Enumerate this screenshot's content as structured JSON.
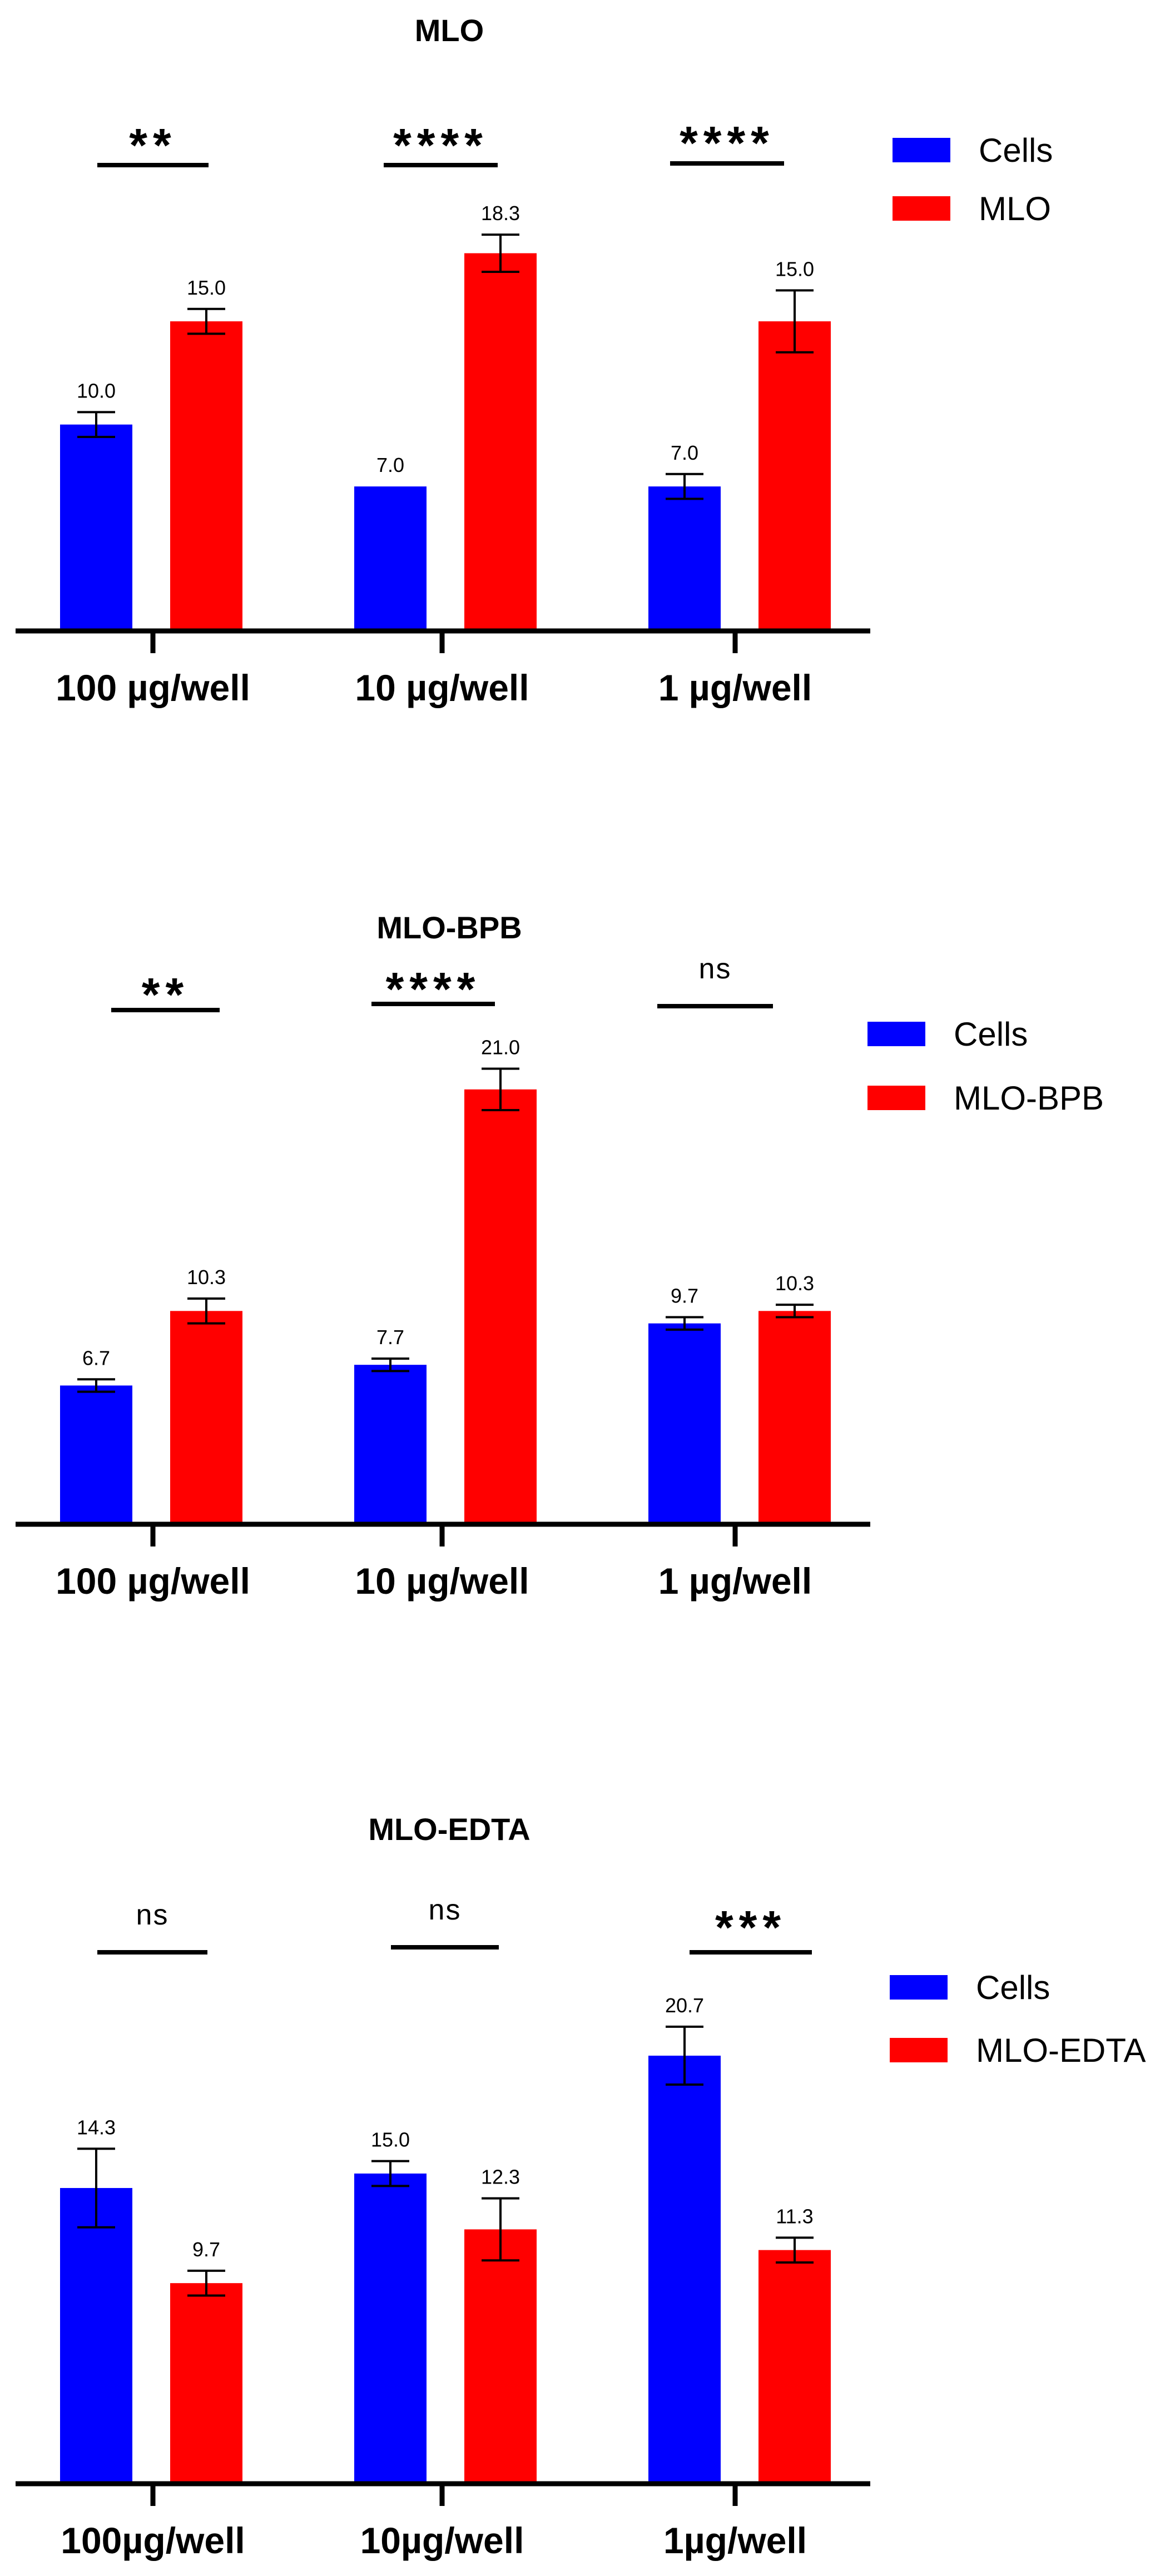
{
  "colors": {
    "cells": "#0000ff",
    "treatment": "#ff0000",
    "ink": "#000000"
  },
  "chart_data": [
    {
      "type": "bar",
      "title": "MLO",
      "categories": [
        "100 µg/well",
        "10 µg/well",
        "1 µg/well"
      ],
      "series": [
        {
          "name": "Cells",
          "values": [
            10.0,
            7.0,
            7.0
          ],
          "errors": [
            0.6,
            0.0,
            0.6
          ],
          "labels": [
            "10.0",
            "7.0",
            "7.0"
          ]
        },
        {
          "name": "MLO",
          "values": [
            15.0,
            18.3,
            15.0
          ],
          "errors": [
            0.6,
            0.9,
            1.5
          ],
          "labels": [
            "15.0",
            "18.3",
            "15.0"
          ]
        }
      ],
      "significance": [
        "**",
        "****",
        "****"
      ],
      "xlabel": "",
      "ylabel": "",
      "ylim": [
        0,
        22
      ],
      "legend": "top-right"
    },
    {
      "type": "bar",
      "title": "MLO-BPB",
      "categories": [
        "100 µg/well",
        "10 µg/well",
        "1 µg/well"
      ],
      "series": [
        {
          "name": "Cells",
          "values": [
            6.7,
            7.7,
            9.7
          ],
          "errors": [
            0.3,
            0.3,
            0.3
          ],
          "labels": [
            "6.7",
            "7.7",
            "9.7"
          ]
        },
        {
          "name": "MLO-BPB",
          "values": [
            10.3,
            21.0,
            10.3
          ],
          "errors": [
            0.6,
            1.0,
            0.3
          ],
          "labels": [
            "10.3",
            "21.0",
            "10.3"
          ]
        }
      ],
      "significance": [
        "**",
        "****",
        "ns"
      ],
      "xlabel": "",
      "ylabel": "",
      "ylim": [
        0,
        25.5
      ],
      "legend": "top-right"
    },
    {
      "type": "bar",
      "title": "MLO-EDTA",
      "categories": [
        "100µg/well",
        "10µg/well",
        "1µg/well"
      ],
      "series": [
        {
          "name": "Cells",
          "values": [
            14.3,
            15.0,
            20.7
          ],
          "errors": [
            1.9,
            0.6,
            1.4
          ],
          "labels": [
            "14.3",
            "15.0",
            "20.7"
          ]
        },
        {
          "name": "MLO-EDTA",
          "values": [
            9.7,
            12.3,
            11.3
          ],
          "errors": [
            0.6,
            1.5,
            0.6
          ],
          "labels": [
            "9.7",
            "12.3",
            "11.3"
          ]
        }
      ],
      "significance": [
        "ns",
        "ns",
        "***"
      ],
      "xlabel": "",
      "ylabel": "",
      "ylim": [
        0,
        25.5
      ],
      "legend": "top-right"
    }
  ]
}
